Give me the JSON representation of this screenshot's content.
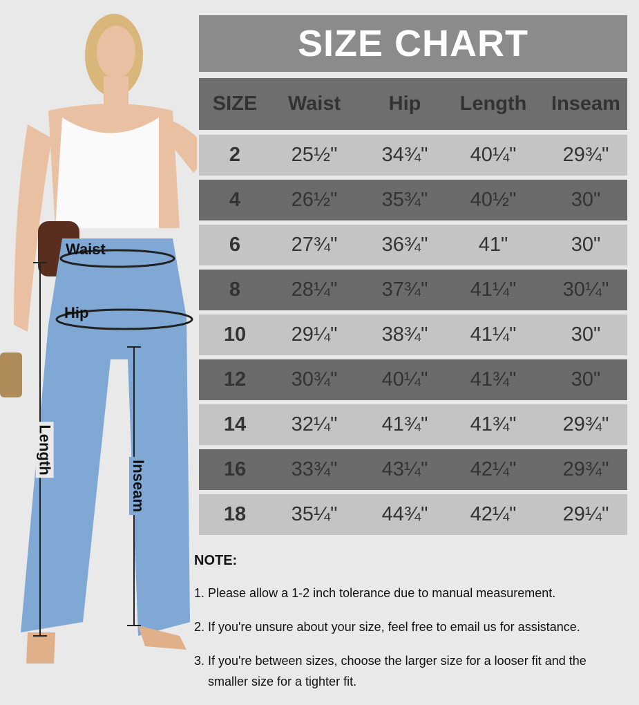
{
  "title": "SIZE CHART",
  "columns": [
    "SIZE",
    "Waist",
    "Hip",
    "Length",
    "Inseam"
  ],
  "rows": [
    [
      "2",
      "25½\"",
      "34¾\"",
      "40¼\"",
      "29¾\""
    ],
    [
      "4",
      "26½\"",
      "35¾\"",
      "40½\"",
      "30\""
    ],
    [
      "6",
      "27¾\"",
      "36¾\"",
      "41\"",
      "30\""
    ],
    [
      "8",
      "28¼\"",
      "37¾\"",
      "41¼\"",
      "30¼\""
    ],
    [
      "10",
      "29¼\"",
      "38¾\"",
      "41¼\"",
      "30\""
    ],
    [
      "12",
      "30¾\"",
      "40¼\"",
      "41¾\"",
      "30\""
    ],
    [
      "14",
      "32¼\"",
      "41¾\"",
      "41¾\"",
      "29¾\""
    ],
    [
      "16",
      "33¾\"",
      "43¼\"",
      "42¼\"",
      "29¾\""
    ],
    [
      "18",
      "35¼\"",
      "44¾\"",
      "42¼\"",
      "29¼\""
    ]
  ],
  "notes": {
    "heading": "NOTE:",
    "items": [
      "1. Please allow a 1-2 inch tolerance due to manual measurement.",
      "2. If you're unsure about your size, feel free to email us for assistance.",
      "3. If you're between sizes, choose the larger size for a looser fit and the",
      "smaller size for a tighter fit."
    ]
  },
  "measure_labels": {
    "waist": "Waist",
    "hip": "Hip",
    "length": "Length",
    "inseam": "Inseam"
  },
  "colors": {
    "title_bg": "#8b8b8c",
    "header_bg": "#6e6e6f",
    "row_light": "#c4c4c5",
    "row_dark": "#6b6b6c",
    "jeans": "#7fa9d4"
  }
}
